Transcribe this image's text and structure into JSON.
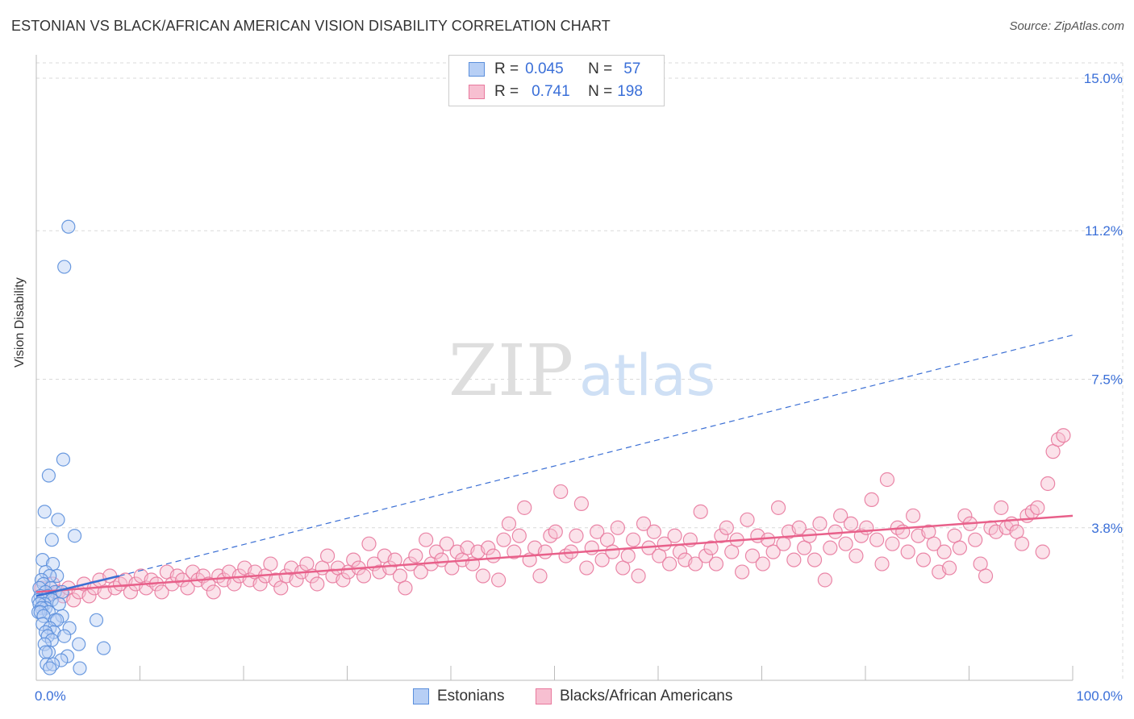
{
  "title": "ESTONIAN VS BLACK/AFRICAN AMERICAN VISION DISABILITY CORRELATION CHART",
  "source": "Source: ZipAtlas.com",
  "watermark": {
    "zip": "ZIP",
    "atlas": "atlas"
  },
  "legend": {
    "rows": [
      {
        "r_label": "R =",
        "r_value": "0.045",
        "n_label": "N =",
        "n_value": "57"
      },
      {
        "r_label": "R =",
        "r_value": "0.741",
        "n_label": "N =",
        "n_value": "198"
      }
    ]
  },
  "bottom_legend": {
    "series1": "Estonians",
    "series2": "Blacks/African Americans"
  },
  "colors": {
    "estonians_fill": "#b7cff5",
    "estonians_stroke": "#5b8fdc",
    "estonians_line": "#3b6fd4",
    "blacks_fill": "#f7bfd1",
    "blacks_stroke": "#e8799d",
    "blacks_line": "#e8608a",
    "axis_label": "#3a6fd8",
    "grid": "#d9d9d9"
  },
  "chart_data": {
    "type": "scatter",
    "title": "ESTONIAN VS BLACK/AFRICAN AMERICAN VISION DISABILITY CORRELATION CHART",
    "xlabel": "",
    "ylabel": "Vision Disability",
    "xlim": [
      0,
      100
    ],
    "ylim": [
      0,
      15.5
    ],
    "x_tick_labels": [
      "0.0%",
      "100.0%"
    ],
    "y_ticks": [
      3.8,
      7.5,
      11.2,
      15.0
    ],
    "y_tick_labels": [
      "3.8%",
      "7.5%",
      "11.2%",
      "15.0%"
    ],
    "grid": true,
    "legend_placement": "top-center",
    "series": [
      {
        "name": "Estonians",
        "r": 0.045,
        "n": 57,
        "trend_solid": [
          [
            0,
            2.1
          ],
          [
            8,
            2.6
          ]
        ],
        "trend_dashed": [
          [
            8,
            2.6
          ],
          [
            100,
            8.6
          ]
        ],
        "points": [
          [
            3.1,
            11.3
          ],
          [
            2.7,
            10.3
          ],
          [
            2.6,
            5.5
          ],
          [
            1.2,
            5.1
          ],
          [
            0.8,
            4.2
          ],
          [
            2.1,
            4.0
          ],
          [
            3.7,
            3.6
          ],
          [
            1.5,
            3.5
          ],
          [
            0.6,
            3.0
          ],
          [
            1.6,
            2.9
          ],
          [
            0.9,
            2.7
          ],
          [
            2.0,
            2.6
          ],
          [
            1.3,
            2.6
          ],
          [
            0.5,
            2.5
          ],
          [
            0.7,
            2.4
          ],
          [
            1.4,
            2.3
          ],
          [
            0.3,
            2.3
          ],
          [
            1.8,
            2.2
          ],
          [
            0.9,
            2.2
          ],
          [
            2.5,
            2.2
          ],
          [
            0.4,
            2.1
          ],
          [
            1.1,
            2.1
          ],
          [
            0.2,
            2.0
          ],
          [
            0.6,
            2.0
          ],
          [
            1.5,
            2.0
          ],
          [
            0.8,
            1.9
          ],
          [
            2.2,
            1.9
          ],
          [
            0.3,
            1.9
          ],
          [
            0.9,
            1.8
          ],
          [
            0.5,
            1.8
          ],
          [
            0.2,
            1.7
          ],
          [
            1.2,
            1.7
          ],
          [
            0.4,
            1.7
          ],
          [
            0.7,
            1.6
          ],
          [
            2.5,
            1.6
          ],
          [
            1.8,
            1.5
          ],
          [
            5.8,
            1.5
          ],
          [
            2.0,
            1.5
          ],
          [
            0.6,
            1.4
          ],
          [
            1.3,
            1.3
          ],
          [
            3.2,
            1.3
          ],
          [
            1.7,
            1.2
          ],
          [
            0.9,
            1.2
          ],
          [
            1.1,
            1.1
          ],
          [
            2.7,
            1.1
          ],
          [
            1.5,
            1.0
          ],
          [
            0.8,
            0.9
          ],
          [
            4.1,
            0.9
          ],
          [
            6.5,
            0.8
          ],
          [
            1.2,
            0.7
          ],
          [
            0.9,
            0.7
          ],
          [
            3.0,
            0.6
          ],
          [
            2.4,
            0.5
          ],
          [
            1.0,
            0.4
          ],
          [
            1.6,
            0.4
          ],
          [
            4.2,
            0.3
          ],
          [
            1.3,
            0.3
          ]
        ]
      },
      {
        "name": "Blacks/African Americans",
        "r": 0.741,
        "n": 198,
        "trend_solid": [
          [
            0,
            2.2
          ],
          [
            100,
            4.1
          ]
        ],
        "points": [
          [
            0.5,
            2.3
          ],
          [
            1.0,
            2.1
          ],
          [
            1.6,
            2.4
          ],
          [
            2.1,
            2.2
          ],
          [
            2.6,
            2.1
          ],
          [
            3.1,
            2.3
          ],
          [
            3.6,
            2.0
          ],
          [
            4.1,
            2.2
          ],
          [
            4.6,
            2.4
          ],
          [
            5.1,
            2.1
          ],
          [
            5.6,
            2.3
          ],
          [
            6.1,
            2.5
          ],
          [
            6.6,
            2.2
          ],
          [
            7.1,
            2.6
          ],
          [
            7.6,
            2.3
          ],
          [
            8.1,
            2.4
          ],
          [
            8.6,
            2.5
          ],
          [
            9.1,
            2.2
          ],
          [
            9.6,
            2.4
          ],
          [
            10.1,
            2.6
          ],
          [
            10.6,
            2.3
          ],
          [
            11.1,
            2.5
          ],
          [
            11.6,
            2.4
          ],
          [
            12.1,
            2.2
          ],
          [
            12.6,
            2.7
          ],
          [
            13.1,
            2.4
          ],
          [
            13.6,
            2.6
          ],
          [
            14.1,
            2.5
          ],
          [
            14.6,
            2.3
          ],
          [
            15.1,
            2.7
          ],
          [
            15.6,
            2.5
          ],
          [
            16.1,
            2.6
          ],
          [
            16.6,
            2.4
          ],
          [
            17.1,
            2.2
          ],
          [
            17.6,
            2.6
          ],
          [
            18.1,
            2.5
          ],
          [
            18.6,
            2.7
          ],
          [
            19.1,
            2.4
          ],
          [
            19.6,
            2.6
          ],
          [
            20.1,
            2.8
          ],
          [
            20.6,
            2.5
          ],
          [
            21.1,
            2.7
          ],
          [
            21.6,
            2.4
          ],
          [
            22.1,
            2.6
          ],
          [
            22.6,
            2.9
          ],
          [
            23.1,
            2.5
          ],
          [
            23.6,
            2.3
          ],
          [
            24.1,
            2.6
          ],
          [
            24.6,
            2.8
          ],
          [
            25.1,
            2.5
          ],
          [
            25.6,
            2.7
          ],
          [
            26.1,
            2.9
          ],
          [
            26.6,
            2.6
          ],
          [
            27.1,
            2.4
          ],
          [
            27.6,
            2.8
          ],
          [
            28.1,
            3.1
          ],
          [
            28.6,
            2.6
          ],
          [
            29.1,
            2.8
          ],
          [
            29.6,
            2.5
          ],
          [
            30.1,
            2.7
          ],
          [
            30.6,
            3.0
          ],
          [
            31.1,
            2.8
          ],
          [
            31.6,
            2.6
          ],
          [
            32.1,
            3.4
          ],
          [
            32.6,
            2.9
          ],
          [
            33.1,
            2.7
          ],
          [
            33.6,
            3.1
          ],
          [
            34.1,
            2.8
          ],
          [
            34.6,
            3.0
          ],
          [
            35.1,
            2.6
          ],
          [
            35.6,
            2.3
          ],
          [
            36.1,
            2.9
          ],
          [
            36.6,
            3.1
          ],
          [
            37.1,
            2.7
          ],
          [
            37.6,
            3.5
          ],
          [
            38.1,
            2.9
          ],
          [
            38.6,
            3.2
          ],
          [
            39.1,
            3.0
          ],
          [
            39.6,
            3.4
          ],
          [
            40.1,
            2.8
          ],
          [
            40.6,
            3.2
          ],
          [
            41.1,
            3.0
          ],
          [
            41.6,
            3.3
          ],
          [
            42.1,
            2.9
          ],
          [
            42.6,
            3.2
          ],
          [
            43.1,
            2.6
          ],
          [
            43.6,
            3.3
          ],
          [
            44.1,
            3.1
          ],
          [
            44.6,
            2.5
          ],
          [
            45.1,
            3.5
          ],
          [
            45.6,
            3.9
          ],
          [
            46.1,
            3.2
          ],
          [
            46.6,
            3.6
          ],
          [
            47.1,
            4.3
          ],
          [
            47.6,
            3.0
          ],
          [
            48.1,
            3.3
          ],
          [
            48.6,
            2.6
          ],
          [
            49.1,
            3.2
          ],
          [
            49.6,
            3.6
          ],
          [
            50.1,
            3.7
          ],
          [
            50.6,
            4.7
          ],
          [
            51.1,
            3.1
          ],
          [
            51.6,
            3.2
          ],
          [
            52.1,
            3.6
          ],
          [
            52.6,
            4.4
          ],
          [
            53.1,
            2.8
          ],
          [
            53.6,
            3.3
          ],
          [
            54.1,
            3.7
          ],
          [
            54.6,
            3.0
          ],
          [
            55.1,
            3.5
          ],
          [
            55.6,
            3.2
          ],
          [
            56.1,
            3.8
          ],
          [
            56.6,
            2.8
          ],
          [
            57.1,
            3.1
          ],
          [
            57.6,
            3.5
          ],
          [
            58.1,
            2.6
          ],
          [
            58.6,
            3.9
          ],
          [
            59.1,
            3.3
          ],
          [
            59.6,
            3.7
          ],
          [
            60.1,
            3.1
          ],
          [
            60.6,
            3.4
          ],
          [
            61.1,
            2.9
          ],
          [
            61.6,
            3.6
          ],
          [
            62.1,
            3.2
          ],
          [
            62.6,
            3.0
          ],
          [
            63.1,
            3.5
          ],
          [
            63.6,
            2.9
          ],
          [
            64.1,
            4.2
          ],
          [
            64.6,
            3.1
          ],
          [
            65.1,
            3.3
          ],
          [
            65.6,
            2.9
          ],
          [
            66.1,
            3.6
          ],
          [
            66.6,
            3.8
          ],
          [
            67.1,
            3.2
          ],
          [
            67.6,
            3.5
          ],
          [
            68.1,
            2.7
          ],
          [
            68.6,
            4.0
          ],
          [
            69.1,
            3.1
          ],
          [
            69.6,
            3.6
          ],
          [
            70.1,
            2.9
          ],
          [
            70.6,
            3.5
          ],
          [
            71.1,
            3.2
          ],
          [
            71.6,
            4.3
          ],
          [
            72.1,
            3.4
          ],
          [
            72.6,
            3.7
          ],
          [
            73.1,
            3.0
          ],
          [
            73.6,
            3.8
          ],
          [
            74.1,
            3.3
          ],
          [
            74.6,
            3.6
          ],
          [
            75.1,
            3.0
          ],
          [
            75.6,
            3.9
          ],
          [
            76.1,
            2.5
          ],
          [
            76.6,
            3.3
          ],
          [
            77.1,
            3.7
          ],
          [
            77.6,
            4.1
          ],
          [
            78.1,
            3.4
          ],
          [
            78.6,
            3.9
          ],
          [
            79.1,
            3.1
          ],
          [
            79.6,
            3.6
          ],
          [
            80.1,
            3.8
          ],
          [
            80.6,
            4.5
          ],
          [
            81.1,
            3.5
          ],
          [
            81.6,
            2.9
          ],
          [
            82.1,
            5.0
          ],
          [
            82.6,
            3.4
          ],
          [
            83.1,
            3.8
          ],
          [
            83.6,
            3.7
          ],
          [
            84.1,
            3.2
          ],
          [
            84.6,
            4.1
          ],
          [
            85.1,
            3.6
          ],
          [
            85.6,
            3.0
          ],
          [
            86.1,
            3.7
          ],
          [
            86.6,
            3.4
          ],
          [
            87.1,
            2.7
          ],
          [
            87.6,
            3.2
          ],
          [
            88.1,
            2.8
          ],
          [
            88.6,
            3.6
          ],
          [
            89.1,
            3.3
          ],
          [
            89.6,
            4.1
          ],
          [
            90.1,
            3.9
          ],
          [
            90.6,
            3.5
          ],
          [
            91.1,
            2.9
          ],
          [
            91.6,
            2.6
          ],
          [
            92.1,
            3.8
          ],
          [
            92.6,
            3.7
          ],
          [
            93.1,
            4.3
          ],
          [
            93.6,
            3.8
          ],
          [
            94.1,
            3.9
          ],
          [
            94.6,
            3.7
          ],
          [
            95.1,
            3.4
          ],
          [
            95.6,
            4.1
          ],
          [
            96.1,
            4.2
          ],
          [
            96.6,
            4.3
          ],
          [
            97.1,
            3.2
          ],
          [
            97.6,
            4.9
          ],
          [
            98.1,
            5.7
          ],
          [
            98.6,
            6.0
          ],
          [
            99.1,
            6.1
          ]
        ]
      }
    ]
  }
}
